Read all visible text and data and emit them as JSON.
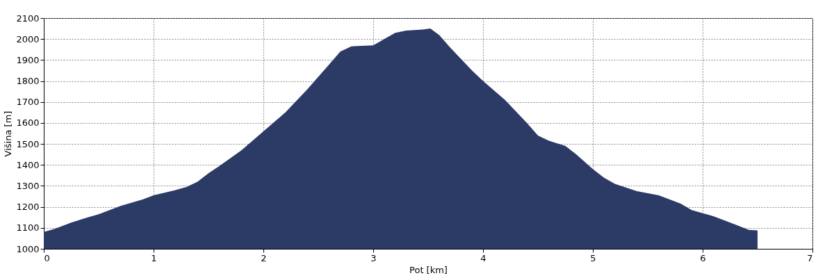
{
  "chart_data": {
    "type": "area",
    "xlabel": "Pot [km]",
    "ylabel": "Višina [m]",
    "x": [
      0,
      0.1,
      0.25,
      0.4,
      0.5,
      0.6,
      0.7,
      0.9,
      1.0,
      1.2,
      1.3,
      1.4,
      1.5,
      1.6,
      1.8,
      2.0,
      2.2,
      2.4,
      2.6,
      2.7,
      2.8,
      3.0,
      3.1,
      3.2,
      3.3,
      3.45,
      3.52,
      3.6,
      3.7,
      3.9,
      4.0,
      4.2,
      4.4,
      4.5,
      4.6,
      4.75,
      4.85,
      5.0,
      5.1,
      5.2,
      5.4,
      5.6,
      5.8,
      5.9,
      6.1,
      6.3,
      6.42,
      6.5
    ],
    "series": [
      {
        "color": "#2c3a66",
        "values": [
          1080,
          1095,
          1125,
          1150,
          1165,
          1185,
          1205,
          1235,
          1255,
          1280,
          1295,
          1320,
          1360,
          1395,
          1470,
          1560,
          1650,
          1760,
          1880,
          1940,
          1965,
          1970,
          2000,
          2030,
          2040,
          2045,
          2050,
          2020,
          1960,
          1850,
          1800,
          1710,
          1600,
          1540,
          1515,
          1490,
          1450,
          1380,
          1340,
          1310,
          1275,
          1255,
          1215,
          1185,
          1155,
          1115,
          1090,
          1088
        ]
      }
    ],
    "xlim": [
      0,
      7
    ],
    "xticks": [
      0,
      1,
      2,
      3,
      4,
      5,
      6,
      7
    ],
    "ylim": [
      1000,
      2100
    ],
    "yticks": [
      1000,
      1100,
      1200,
      1300,
      1400,
      1500,
      1600,
      1700,
      1800,
      1900,
      2000,
      2100
    ],
    "grid": true
  }
}
